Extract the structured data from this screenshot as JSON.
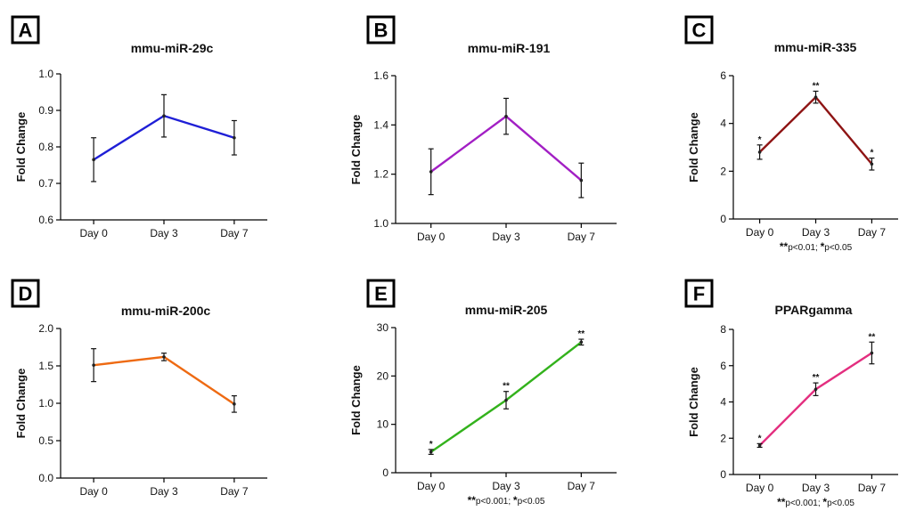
{
  "chart_data": [
    {
      "panel": "A",
      "type": "line",
      "title": "mmu-miR-29c",
      "ylabel": "Fold Change",
      "xlabel": "",
      "categories": [
        "Day 0",
        "Day 3",
        "Day 7"
      ],
      "ylim": [
        0.6,
        1.0
      ],
      "yticks": [
        0.6,
        0.7,
        0.8,
        0.9,
        1.0
      ],
      "ytick_labels": [
        "0.6",
        "0.7",
        "0.8",
        "0.9",
        "1.0"
      ],
      "color": "#1f1fd6",
      "series": [
        {
          "values": [
            0.765,
            0.885,
            0.825
          ],
          "errors": [
            0.06,
            0.058,
            0.047
          ]
        }
      ],
      "significance": [
        "",
        "",
        ""
      ],
      "footnote": null
    },
    {
      "panel": "B",
      "type": "line",
      "title": "mmu-miR-191",
      "ylabel": "Fold Change",
      "xlabel": "",
      "categories": [
        "Day 0",
        "Day 3",
        "Day 7"
      ],
      "ylim": [
        1.0,
        1.6
      ],
      "yticks": [
        1.0,
        1.2,
        1.4,
        1.6
      ],
      "ytick_labels": [
        "1.0",
        "1.2",
        "1.4",
        "1.6"
      ],
      "color": "#a21fc4",
      "series": [
        {
          "values": [
            1.21,
            1.435,
            1.175
          ],
          "errors": [
            0.093,
            0.073,
            0.07
          ]
        }
      ],
      "significance": [
        "",
        "",
        ""
      ],
      "footnote": null
    },
    {
      "panel": "C",
      "type": "line",
      "title": "mmu-miR-335",
      "ylabel": "Fold Change",
      "xlabel": "",
      "categories": [
        "Day 0",
        "Day 3",
        "Day 7"
      ],
      "ylim": [
        0,
        6
      ],
      "yticks": [
        0,
        2,
        4,
        6
      ],
      "ytick_labels": [
        "0",
        "2",
        "4",
        "6"
      ],
      "color": "#8e1414",
      "series": [
        {
          "values": [
            2.8,
            5.1,
            2.3
          ],
          "errors": [
            0.3,
            0.25,
            0.25
          ]
        }
      ],
      "significance": [
        "*",
        "**",
        "*"
      ],
      "footnote": {
        "stars1": "**",
        "text1": "p<0.01; ",
        "stars2": "*",
        "text2": "p<0.05"
      }
    },
    {
      "panel": "D",
      "type": "line",
      "title": "mmu-miR-200c",
      "ylabel": "Fold Change",
      "xlabel": "",
      "categories": [
        "Day 0",
        "Day 3",
        "Day 7"
      ],
      "ylim": [
        0.0,
        2.0
      ],
      "yticks": [
        0.0,
        0.5,
        1.0,
        1.5,
        2.0
      ],
      "ytick_labels": [
        "0.0",
        "0.5",
        "1.0",
        "1.5",
        "2.0"
      ],
      "color": "#ee6a12",
      "series": [
        {
          "values": [
            1.51,
            1.62,
            0.99
          ],
          "errors": [
            0.22,
            0.05,
            0.11
          ]
        }
      ],
      "significance": [
        "",
        "",
        ""
      ],
      "footnote": null
    },
    {
      "panel": "E",
      "type": "line",
      "title": "mmu-miR-205",
      "ylabel": "Fold Change",
      "xlabel": "",
      "categories": [
        "Day 0",
        "Day 3",
        "Day 7"
      ],
      "ylim": [
        0,
        30
      ],
      "yticks": [
        0,
        10,
        20,
        30
      ],
      "ytick_labels": [
        "0",
        "10",
        "20",
        "30"
      ],
      "color": "#33b21c",
      "series": [
        {
          "values": [
            4.3,
            15.0,
            27.0
          ],
          "errors": [
            0.5,
            1.8,
            0.6
          ]
        }
      ],
      "significance": [
        "*",
        "**",
        "**"
      ],
      "footnote": {
        "stars1": "**",
        "text1": "p<0.001; ",
        "stars2": "*",
        "text2": "p<0.05"
      }
    },
    {
      "panel": "F",
      "type": "line",
      "title": "PPARgamma",
      "ylabel": "Fold Change",
      "xlabel": "",
      "categories": [
        "Day 0",
        "Day 3",
        "Day 7"
      ],
      "ylim": [
        0,
        8
      ],
      "yticks": [
        0,
        2,
        4,
        6,
        8
      ],
      "ytick_labels": [
        "0",
        "2",
        "4",
        "6",
        "8"
      ],
      "color": "#e32e7f",
      "series": [
        {
          "values": [
            1.6,
            4.7,
            6.7
          ],
          "errors": [
            0.1,
            0.35,
            0.6
          ]
        }
      ],
      "significance": [
        "*",
        "**",
        "**"
      ],
      "footnote": {
        "stars1": "**",
        "text1": "p<0.001; ",
        "stars2": "*",
        "text2": "p<0.05"
      }
    }
  ]
}
